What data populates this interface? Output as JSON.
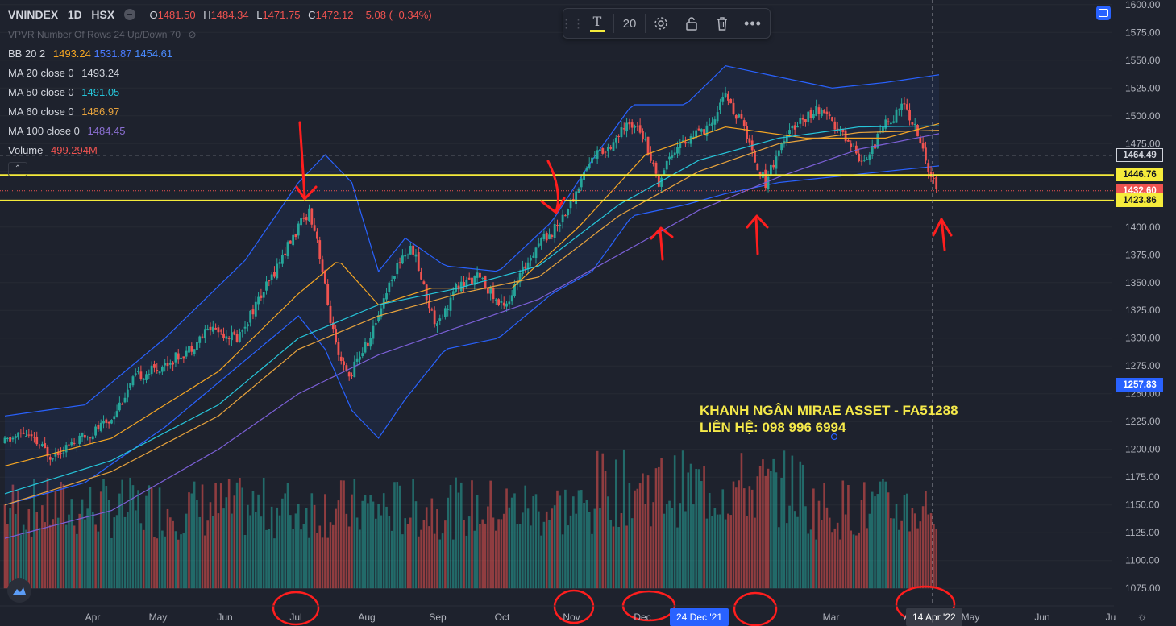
{
  "header": {
    "symbol": "VNINDEX",
    "interval": "1D",
    "exchange": "HSX",
    "ohlc": {
      "o_label": "O",
      "o": "1481.50",
      "h_label": "H",
      "h": "1484.34",
      "l_label": "L",
      "l": "1471.75",
      "c_label": "C",
      "c": "1472.12",
      "change": "−5.08 (−0.34%)"
    }
  },
  "indicators": {
    "vpvr": "VPVR Number Of Rows 24 Up/Down 70",
    "bb_label": "BB 20 2",
    "bb_values": [
      "1493.24",
      "1531.87",
      "1454.61"
    ],
    "ma20_label": "MA 20 close 0",
    "ma20_value": "1493.24",
    "ma50_label": "MA 50 close 0",
    "ma50_value": "1491.05",
    "ma60_label": "MA 60 close 0",
    "ma60_value": "1486.97",
    "ma100_label": "MA 100 close 0",
    "ma100_value": "1484.45",
    "volume_label": "Volume",
    "volume_value": "499.294M"
  },
  "toolbar": {
    "font_size": "20"
  },
  "watermark": {
    "line1": "KHANH NGÂN MIRAE ASSET - FA51288",
    "line2": "LIÊN HỆ: 098 996 6994"
  },
  "price_tags": [
    {
      "value": "1464.49",
      "bg": "#1e222d",
      "fg": "#d1d4dc",
      "border": "#d1d4dc"
    },
    {
      "value": "1446.76",
      "bg": "#f5eb3b",
      "fg": "#131722",
      "border": "#f5eb3b"
    },
    {
      "value": "1432.60",
      "bg": "#ef5350",
      "fg": "#ffffff",
      "border": "#ef5350"
    },
    {
      "value": "1423.86",
      "bg": "#f5eb3b",
      "fg": "#131722",
      "border": "#f5eb3b"
    },
    {
      "value": "1257.83",
      "bg": "#2962ff",
      "fg": "#ffffff",
      "border": "#2962ff"
    }
  ],
  "date_tags": {
    "crosshair_date": "24 Dec '21",
    "cursor_date": "14 Apr '22"
  },
  "colors": {
    "up": "#26a69a",
    "down": "#ef5350",
    "bb": "#2962ff",
    "ma20": "#f5a623",
    "ma50": "#26c6da",
    "ma60": "#e8a33d",
    "ma100": "#7b5fd6",
    "hline": "#f5eb3b",
    "annotation": "#ff1e1e"
  },
  "chart_data": {
    "type": "candlestick",
    "y_axis": {
      "range": [
        1065,
        1610
      ],
      "ticks": [
        "1075.00",
        "1100.00",
        "1125.00",
        "1150.00",
        "1175.00",
        "1200.00",
        "1225.00",
        "1250.00",
        "1275.00",
        "1300.00",
        "1325.00",
        "1350.00",
        "1375.00",
        "1400.00",
        "1425.00",
        "1450.00",
        "1475.00",
        "1500.00",
        "1525.00",
        "1550.00",
        "1575.00",
        "1600.00"
      ]
    },
    "x_axis": {
      "labels": [
        "Apr",
        "May",
        "Jun",
        "Jul",
        "Aug",
        "Sep",
        "Oct",
        "Nov",
        "Dec",
        "Mar",
        "A",
        "May",
        "Jun",
        "Ju"
      ]
    },
    "horizontal_levels": [
      1446.76,
      1423.86
    ],
    "close_path": [
      [
        0,
        1205
      ],
      [
        8,
        1215
      ],
      [
        18,
        1195
      ],
      [
        30,
        1210
      ],
      [
        40,
        1225
      ],
      [
        50,
        1265
      ],
      [
        60,
        1275
      ],
      [
        70,
        1290
      ],
      [
        78,
        1310
      ],
      [
        88,
        1300
      ],
      [
        95,
        1330
      ],
      [
        100,
        1350
      ],
      [
        104,
        1370
      ],
      [
        110,
        1395
      ],
      [
        115,
        1415
      ],
      [
        118,
        1390
      ],
      [
        122,
        1330
      ],
      [
        126,
        1280
      ],
      [
        130,
        1265
      ],
      [
        134,
        1285
      ],
      [
        138,
        1300
      ],
      [
        142,
        1330
      ],
      [
        146,
        1355
      ],
      [
        150,
        1375
      ],
      [
        154,
        1380
      ],
      [
        158,
        1345
      ],
      [
        162,
        1315
      ],
      [
        166,
        1325
      ],
      [
        170,
        1345
      ],
      [
        174,
        1350
      ],
      [
        178,
        1355
      ],
      [
        182,
        1345
      ],
      [
        186,
        1330
      ],
      [
        190,
        1335
      ],
      [
        194,
        1355
      ],
      [
        198,
        1375
      ],
      [
        202,
        1390
      ],
      [
        206,
        1395
      ],
      [
        210,
        1410
      ],
      [
        214,
        1425
      ],
      [
        218,
        1450
      ],
      [
        222,
        1465
      ],
      [
        226,
        1470
      ],
      [
        230,
        1480
      ],
      [
        234,
        1490
      ],
      [
        238,
        1495
      ],
      [
        242,
        1470
      ],
      [
        246,
        1440
      ],
      [
        250,
        1465
      ],
      [
        254,
        1475
      ],
      [
        258,
        1480
      ],
      [
        262,
        1485
      ],
      [
        266,
        1490
      ],
      [
        270,
        1520
      ],
      [
        274,
        1505
      ],
      [
        278,
        1490
      ],
      [
        282,
        1460
      ],
      [
        286,
        1440
      ],
      [
        290,
        1465
      ],
      [
        294,
        1480
      ],
      [
        298,
        1495
      ],
      [
        302,
        1500
      ],
      [
        306,
        1505
      ],
      [
        310,
        1495
      ],
      [
        314,
        1485
      ],
      [
        318,
        1475
      ],
      [
        322,
        1460
      ],
      [
        326,
        1470
      ],
      [
        330,
        1490
      ],
      [
        334,
        1500
      ],
      [
        338,
        1510
      ],
      [
        342,
        1490
      ],
      [
        346,
        1460
      ],
      [
        350,
        1432.6
      ]
    ],
    "ma20": [
      [
        0,
        1185
      ],
      [
        40,
        1210
      ],
      [
        80,
        1270
      ],
      [
        110,
        1340
      ],
      [
        125,
        1370
      ],
      [
        140,
        1330
      ],
      [
        160,
        1345
      ],
      [
        190,
        1345
      ],
      [
        215,
        1400
      ],
      [
        240,
        1465
      ],
      [
        270,
        1490
      ],
      [
        300,
        1480
      ],
      [
        330,
        1480
      ],
      [
        350,
        1493
      ]
    ],
    "ma50": [
      [
        0,
        1160
      ],
      [
        40,
        1190
      ],
      [
        80,
        1240
      ],
      [
        110,
        1300
      ],
      [
        140,
        1330
      ],
      [
        170,
        1345
      ],
      [
        200,
        1365
      ],
      [
        230,
        1420
      ],
      [
        260,
        1460
      ],
      [
        290,
        1480
      ],
      [
        320,
        1490
      ],
      [
        350,
        1491
      ]
    ],
    "ma60": [
      [
        0,
        1150
      ],
      [
        40,
        1180
      ],
      [
        80,
        1230
      ],
      [
        110,
        1290
      ],
      [
        140,
        1320
      ],
      [
        170,
        1340
      ],
      [
        200,
        1355
      ],
      [
        230,
        1410
      ],
      [
        260,
        1450
      ],
      [
        290,
        1475
      ],
      [
        320,
        1485
      ],
      [
        350,
        1487
      ]
    ],
    "ma100": [
      [
        0,
        1120
      ],
      [
        40,
        1145
      ],
      [
        80,
        1200
      ],
      [
        110,
        1250
      ],
      [
        140,
        1285
      ],
      [
        170,
        1310
      ],
      [
        200,
        1335
      ],
      [
        230,
        1375
      ],
      [
        260,
        1415
      ],
      [
        290,
        1445
      ],
      [
        320,
        1470
      ],
      [
        350,
        1484
      ]
    ],
    "bb_upper": [
      [
        0,
        1230
      ],
      [
        30,
        1240
      ],
      [
        60,
        1300
      ],
      [
        90,
        1370
      ],
      [
        110,
        1440
      ],
      [
        120,
        1465
      ],
      [
        130,
        1440
      ],
      [
        140,
        1360
      ],
      [
        150,
        1390
      ],
      [
        165,
        1365
      ],
      [
        185,
        1360
      ],
      [
        205,
        1405
      ],
      [
        220,
        1460
      ],
      [
        235,
        1510
      ],
      [
        255,
        1510
      ],
      [
        270,
        1545
      ],
      [
        290,
        1535
      ],
      [
        310,
        1525
      ],
      [
        330,
        1530
      ],
      [
        350,
        1537
      ]
    ],
    "bb_lower": [
      [
        0,
        1150
      ],
      [
        30,
        1170
      ],
      [
        60,
        1220
      ],
      [
        90,
        1280
      ],
      [
        110,
        1320
      ],
      [
        120,
        1290
      ],
      [
        130,
        1235
      ],
      [
        140,
        1210
      ],
      [
        150,
        1245
      ],
      [
        165,
        1290
      ],
      [
        185,
        1300
      ],
      [
        205,
        1340
      ],
      [
        220,
        1360
      ],
      [
        235,
        1410
      ],
      [
        255,
        1420
      ],
      [
        270,
        1430
      ],
      [
        290,
        1440
      ],
      [
        310,
        1445
      ],
      [
        330,
        1450
      ],
      [
        350,
        1455
      ]
    ],
    "volume": {
      "max_bar": "1200",
      "baseline": "1075"
    }
  }
}
